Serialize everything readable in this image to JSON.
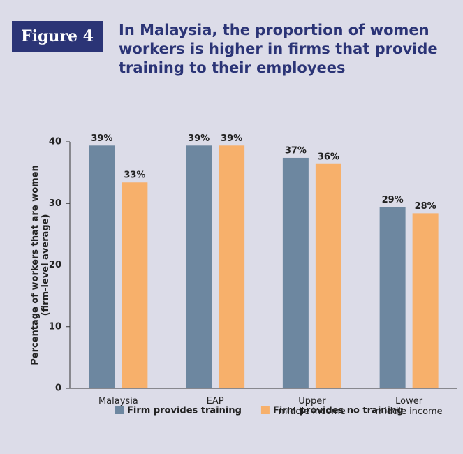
{
  "chart_data": {
    "type": "bar",
    "figure_label": "Figure 4",
    "title": "In Malaysia, the proportion of women workers is higher in firms that provide training to their employees",
    "y_label": [
      "Percentage of workers that are women",
      "(firm-level average)"
    ],
    "categories": [
      [
        "Malaysia"
      ],
      [
        "EAP"
      ],
      [
        "Upper",
        "middle income"
      ],
      [
        "Lower",
        "middle income"
      ]
    ],
    "series": [
      {
        "name": "Firm provides training",
        "color": "#6d87a0",
        "values": [
          39.4,
          39.4,
          37.4,
          29.4
        ],
        "value_labels": [
          "39%",
          "39%",
          "37%",
          "29%"
        ]
      },
      {
        "name": "Firm provides no training",
        "color": "#f7b06b",
        "values": [
          33.4,
          39.4,
          36.4,
          28.4
        ],
        "value_labels": [
          "33%",
          "39%",
          "36%",
          "28%"
        ]
      }
    ],
    "ylim": [
      0,
      40
    ],
    "yticks": [
      0,
      10,
      20,
      30,
      40
    ],
    "grid": false,
    "legend": "bottom"
  }
}
